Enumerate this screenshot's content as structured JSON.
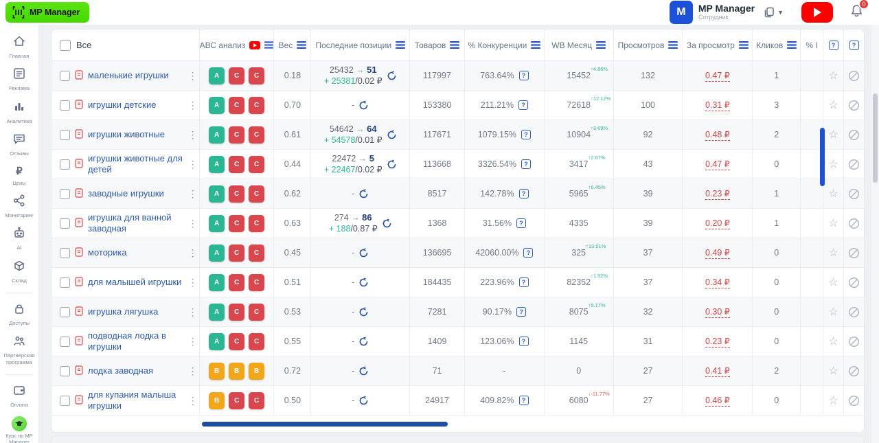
{
  "topbar": {
    "logo_label": "MP Manager",
    "account_name": "MP Manager",
    "account_role": "Сотрудник",
    "notification_count": "0"
  },
  "colors": {
    "accent_green_logo": "#4fdd0a",
    "avatar_blue": "#1d50d8",
    "youtube_red": "#fe0000",
    "badge_a": "#2bb694",
    "badge_b": "#f2a71b",
    "badge_c": "#d9464e",
    "keyword_blue": "#2e5aad",
    "per_view_red": "#d24444",
    "positive_teal": "#2eb893",
    "negative_red": "#e05252",
    "scrollbar_blue": "#1d4fd7"
  },
  "sidebar": {
    "items": [
      {
        "label": "Главная",
        "icon": "home-icon"
      },
      {
        "label": "Реклама",
        "icon": "ads-icon"
      },
      {
        "label": "Аналитика",
        "icon": "bar-chart-icon"
      },
      {
        "label": "Отзывы",
        "icon": "reviews-icon"
      },
      {
        "label": "Цены",
        "icon": "ruble-icon"
      },
      {
        "label": "Мониторинг",
        "icon": "monitoring-icon"
      },
      {
        "label": "AI",
        "icon": "robot-icon"
      },
      {
        "label": "Склад",
        "icon": "cube-icon"
      },
      {
        "label": "Доступы",
        "icon": "lock-icon"
      },
      {
        "label": "Партнерская программа",
        "icon": "partners-icon"
      },
      {
        "label": "Оплата",
        "icon": "wallet-icon"
      },
      {
        "label": "Курс по MP Manager",
        "icon": "course-icon"
      }
    ]
  },
  "table": {
    "select_all_label": "Все",
    "columns": [
      {
        "label": "АВС анализ",
        "cls": "c-abc",
        "youtube": true,
        "filter": true
      },
      {
        "label": "Вес",
        "cls": "c-w",
        "filter": true
      },
      {
        "label": "Последние позиции",
        "cls": "c-pos",
        "filter": true
      },
      {
        "label": "Товаров",
        "cls": "c-prod",
        "filter": true
      },
      {
        "label": "% Конкуренции",
        "cls": "c-comp",
        "filter": true
      },
      {
        "label": "WB Месяц",
        "cls": "c-wb",
        "filter": true
      },
      {
        "label": "Просмотров",
        "cls": "c-views",
        "filter": true
      },
      {
        "label": "За просмотр",
        "cls": "c-pv",
        "filter": true
      },
      {
        "label": "Кликов",
        "cls": "c-clicks",
        "filter": true
      },
      {
        "label": "% I",
        "cls": "c-cut",
        "filter": false
      }
    ],
    "rows": [
      {
        "keyword": "маленькие игрушки",
        "badges": [
          "A",
          "C",
          "C"
        ],
        "weight": "0.18",
        "pos_from": "25432",
        "pos_to": "51",
        "pos_delta": "+ 25381",
        "pos_price": "/0.02 ₽",
        "products": "117997",
        "competition": "763.64%",
        "wb_month": "15452",
        "wb_change": "4.86%",
        "wb_dir": "up",
        "views": "132",
        "per_view": "0.47 ₽",
        "clicks": "1"
      },
      {
        "keyword": "игрушки детские",
        "badges": [
          "A",
          "C",
          "C"
        ],
        "weight": "0.70",
        "products": "153380",
        "competition": "211.21%",
        "wb_month": "72618",
        "wb_change": "12.12%",
        "wb_dir": "up",
        "views": "100",
        "per_view": "0.31 ₽",
        "clicks": "3"
      },
      {
        "keyword": "игрушки животные",
        "badges": [
          "A",
          "C",
          "C"
        ],
        "weight": "0.61",
        "pos_from": "54642",
        "pos_to": "64",
        "pos_delta": "+ 54578",
        "pos_price": "/0.01 ₽",
        "products": "117671",
        "competition": "1079.15%",
        "wb_month": "10904",
        "wb_change": "3.69%",
        "wb_dir": "up",
        "views": "92",
        "per_view": "0.48 ₽",
        "clicks": "2"
      },
      {
        "keyword": "игрушки животные для детей",
        "badges": [
          "A",
          "C",
          "C"
        ],
        "weight": "0.44",
        "pos_from": "22472",
        "pos_to": "5",
        "pos_delta": "+ 22467",
        "pos_price": "/0.02 ₽",
        "products": "113668",
        "competition": "3326.54%",
        "wb_month": "3417",
        "wb_change": "2.67%",
        "wb_dir": "up",
        "views": "43",
        "per_view": "0.47 ₽",
        "clicks": "0"
      },
      {
        "keyword": "заводные игрушки",
        "badges": [
          "A",
          "C",
          "C"
        ],
        "weight": "0.62",
        "products": "8517",
        "competition": "142.78%",
        "wb_month": "5965",
        "wb_change": "6.45%",
        "wb_dir": "up",
        "views": "39",
        "per_view": "0.23 ₽",
        "clicks": "1"
      },
      {
        "keyword": "игрушка для ванной заводная",
        "badges": [
          "A",
          "C",
          "C"
        ],
        "weight": "0.63",
        "pos_from": "274",
        "pos_to": "86",
        "pos_delta": "+ 188",
        "pos_price": "/0.87 ₽",
        "products": "1368",
        "competition": "31.56%",
        "wb_month": "4335",
        "wb_change": "",
        "wb_dir": "",
        "views": "39",
        "per_view": "0.20 ₽",
        "clicks": "1"
      },
      {
        "keyword": "моторика",
        "badges": [
          "A",
          "C",
          "C"
        ],
        "weight": "0.45",
        "products": "136695",
        "competition": "42060.00%",
        "wb_month": "325",
        "wb_change": "13.51%",
        "wb_dir": "up",
        "views": "37",
        "per_view": "0.49 ₽",
        "clicks": "0"
      },
      {
        "keyword": "для малышей игрушки",
        "badges": [
          "A",
          "C",
          "C"
        ],
        "weight": "0.51",
        "products": "184435",
        "competition": "223.96%",
        "wb_month": "82352",
        "wb_change": "1.52%",
        "wb_dir": "up",
        "views": "37",
        "per_view": "0.34 ₽",
        "clicks": "0"
      },
      {
        "keyword": "игрушка лягушка",
        "badges": [
          "A",
          "C",
          "C"
        ],
        "weight": "0.53",
        "products": "7281",
        "competition": "90.17%",
        "wb_month": "8075",
        "wb_change": "5.17%",
        "wb_dir": "up",
        "views": "32",
        "per_view": "0.30 ₽",
        "clicks": "0"
      },
      {
        "keyword": "подводная лодка в игрушки",
        "badges": [
          "A",
          "C",
          "C"
        ],
        "weight": "0.55",
        "products": "1409",
        "competition": "123.06%",
        "wb_month": "1145",
        "wb_change": "",
        "wb_dir": "",
        "views": "31",
        "per_view": "0.23 ₽",
        "clicks": "0"
      },
      {
        "keyword": "лодка заводная",
        "badges": [
          "B",
          "B",
          "B"
        ],
        "weight": "0.72",
        "products": "71",
        "competition": "-",
        "wb_month": "0",
        "wb_change": "",
        "wb_dir": "",
        "views": "27",
        "per_view": "0.41 ₽",
        "clicks": "2"
      },
      {
        "keyword": "для купания малыша игрушки",
        "badges": [
          "B",
          "C",
          "C"
        ],
        "weight": "0.50",
        "products": "24917",
        "competition": "409.82%",
        "wb_month": "6080",
        "wb_change": "-11.77%",
        "wb_dir": "down",
        "views": "27",
        "per_view": "0.46 ₽",
        "clicks": "0"
      }
    ]
  }
}
